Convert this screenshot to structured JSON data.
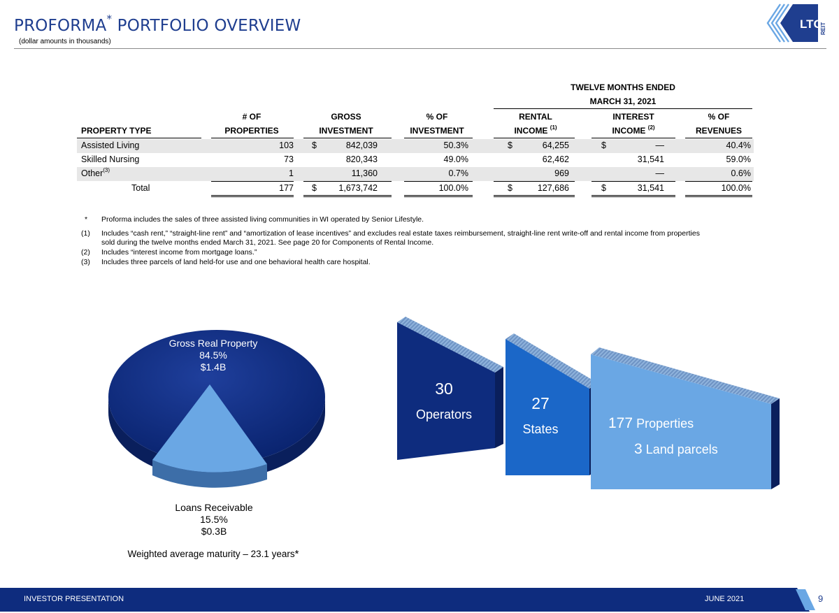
{
  "header": {
    "title": "PROFORMA",
    "title_mark": "*",
    "title_rest": " PORTFOLIO OVERVIEW",
    "subtitle": "(dollar amounts in thousands)",
    "logo_text": "LTC",
    "logo_sub": "REIT"
  },
  "table": {
    "group_header_1": "TWELVE MONTHS ENDED",
    "group_header_2": "MARCH 31, 2021",
    "columns": [
      {
        "top": "",
        "bottom": "PROPERTY TYPE",
        "sup": ""
      },
      {
        "top": "# OF",
        "bottom": "PROPERTIES",
        "sup": ""
      },
      {
        "top": "GROSS",
        "bottom": "INVESTMENT",
        "sup": ""
      },
      {
        "top": "% OF",
        "bottom": "INVESTMENT",
        "sup": ""
      },
      {
        "top": "RENTAL",
        "bottom": "INCOME",
        "sup": "(1)"
      },
      {
        "top": "INTEREST",
        "bottom": "INCOME",
        "sup": "(2)"
      },
      {
        "top": "% OF",
        "bottom": "REVENUES",
        "sup": ""
      }
    ],
    "rows": [
      {
        "type": "Assisted Living",
        "sup": "",
        "properties": "103",
        "gi_dollar": "$",
        "gross_investment": "842,039",
        "pct_investment": "50.3%",
        "ri_dollar": "$",
        "rental_income": "64,255",
        "ii_dollar": "$",
        "interest_income": "—",
        "pct_revenues": "40.4%"
      },
      {
        "type": "Skilled Nursing",
        "sup": "",
        "properties": "73",
        "gi_dollar": "",
        "gross_investment": "820,343",
        "pct_investment": "49.0%",
        "ri_dollar": "",
        "rental_income": "62,462",
        "ii_dollar": "",
        "interest_income": "31,541",
        "pct_revenues": "59.0%"
      },
      {
        "type": "Other",
        "sup": "(3)",
        "properties": "1",
        "gi_dollar": "",
        "gross_investment": "11,360",
        "pct_investment": "0.7%",
        "ri_dollar": "",
        "rental_income": "969",
        "ii_dollar": "",
        "interest_income": "—",
        "pct_revenues": "0.6%"
      }
    ],
    "total": {
      "type": "Total",
      "properties": "177",
      "gi_dollar": "$",
      "gross_investment": "1,673,742",
      "pct_investment": "100.0%",
      "ri_dollar": "$",
      "rental_income": "127,686",
      "ii_dollar": "$",
      "interest_income": "31,541",
      "pct_revenues": "100.0%"
    }
  },
  "footnotes": [
    {
      "mark": "*",
      "text": "Proforma includes the sales of three assisted living communities in WI operated by Senior Lifestyle."
    },
    {
      "mark": "(1)",
      "text": "Includes “cash rent,” “straight-line rent” and “amortization of lease incentives” and excludes real estate taxes reimbursement, straight-line rent write-off and rental income from properties",
      "text2": "sold during the twelve months ended March 31, 2021. See page 20 for Components of Rental Income."
    },
    {
      "mark": "(2)",
      "text": "Includes “interest income from mortgage loans.”"
    },
    {
      "mark": "(3)",
      "text": "Includes three parcels of land held-for use and one behavioral health care hospital."
    }
  ],
  "pie": {
    "segments": [
      {
        "name": "Gross Real Property",
        "pct_label": "84.5%",
        "amount": "$1.4B",
        "value": 84.5,
        "color": "#0e2c7e"
      },
      {
        "name": "Loans Receivable",
        "pct_label": "15.5%",
        "amount": "$0.3B",
        "value": 15.5,
        "color": "#6aa7e4"
      }
    ],
    "note": "Weighted average maturity – 23.1 years",
    "note_mark": "*"
  },
  "stats": [
    {
      "number": "30",
      "label": "Operators",
      "color": "#0e2c7e"
    },
    {
      "number": "27",
      "label": "States",
      "color": "#1b67c8"
    },
    {
      "number": "177",
      "label": "Properties",
      "number2": "3",
      "label2": "Land parcels",
      "color": "#6aa7e4"
    }
  ],
  "footer": {
    "left": "INVESTOR PRESENTATION",
    "right": "JUNE 2021",
    "page": "9"
  }
}
